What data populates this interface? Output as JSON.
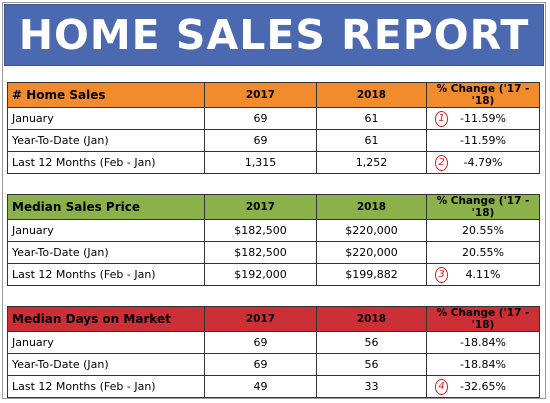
{
  "title": "HOME SALES REPORT",
  "tables": [
    {
      "header": {
        "label": "# Home Sales",
        "y2017": "2017",
        "y2018": "2018",
        "change": "% Change ('17 - '18)"
      },
      "rows": [
        {
          "label": "January",
          "y2017": "69",
          "y2018": "61",
          "change": "-11.59%",
          "note": "1"
        },
        {
          "label": "Year-To-Date (Jan)",
          "y2017": "69",
          "y2018": "61",
          "change": "-11.59%",
          "note": ""
        },
        {
          "label": "Last 12 Months (Feb - Jan)",
          "y2017": "1,315",
          "y2018": "1,252",
          "change": "-4.79%",
          "note": "2"
        }
      ]
    },
    {
      "header": {
        "label": "Median Sales Price",
        "y2017": "2017",
        "y2018": "2018",
        "change": "% Change ('17 - '18)"
      },
      "rows": [
        {
          "label": "January",
          "y2017": "$182,500",
          "y2018": "$220,000",
          "change": "20.55%",
          "note": ""
        },
        {
          "label": "Year-To-Date (Jan)",
          "y2017": "$182,500",
          "y2018": "$220,000",
          "change": "20.55%",
          "note": ""
        },
        {
          "label": "Last 12 Months (Feb - Jan)",
          "y2017": "$192,000",
          "y2018": "$199,882",
          "change": "4.11%",
          "note": "3"
        }
      ]
    },
    {
      "header": {
        "label": "Median Days on Market",
        "y2017": "2017",
        "y2018": "2018",
        "change": "% Change ('17 - '18)"
      },
      "rows": [
        {
          "label": "January",
          "y2017": "69",
          "y2018": "56",
          "change": "-18.84%",
          "note": ""
        },
        {
          "label": "Year-To-Date (Jan)",
          "y2017": "69",
          "y2018": "56",
          "change": "-18.84%",
          "note": ""
        },
        {
          "label": "Last 12 Months (Feb - Jan)",
          "y2017": "49",
          "y2018": "33",
          "change": "-32.65%",
          "note": "4"
        }
      ]
    }
  ],
  "colors": {
    "title_bg": "#4a69b0",
    "home_sales": "#f28a2e",
    "median_price": "#8bb24a",
    "days_on_market": "#cc2f35",
    "note_circle": "#d81e1e"
  }
}
